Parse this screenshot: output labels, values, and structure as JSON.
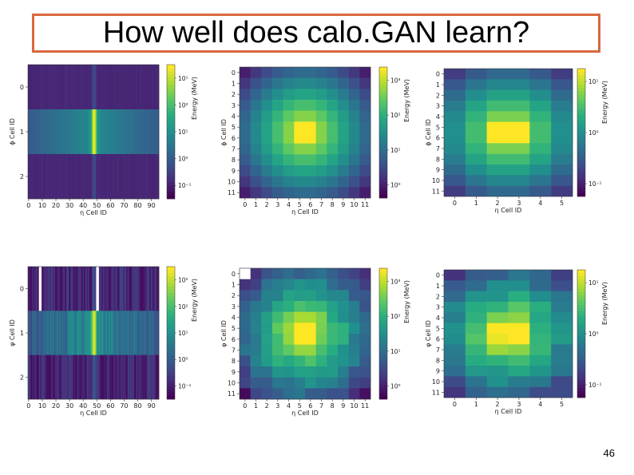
{
  "slide": {
    "title": "How well does calo.GAN learn?",
    "page_number": "46"
  },
  "colors": {
    "title_border": "#d9683f",
    "viridis": [
      "#440154",
      "#472c7a",
      "#3b518b",
      "#2c718e",
      "#21908d",
      "#27ad81",
      "#5cc863",
      "#aadc32",
      "#fde725"
    ]
  },
  "chart_data": [
    {
      "type": "heatmap",
      "id": "top-layer0",
      "title": "",
      "xlabel": "η Cell ID",
      "ylabel": "ϕ Cell ID",
      "xticks": [
        "0",
        "10",
        "20",
        "30",
        "40",
        "50",
        "60",
        "70",
        "80",
        "90"
      ],
      "yticks": [
        "0",
        "1",
        "2"
      ],
      "n_cols": 96,
      "n_rows": 3,
      "peak_col": 48,
      "peak_row": 1,
      "colorbar_label": "Energy (MeV)",
      "colorbar_ticks": [
        "10¹",
        "10²",
        "10¹",
        "10⁰",
        "10⁻¹"
      ]
    },
    {
      "type": "heatmap",
      "id": "top-layer1",
      "title": "",
      "xlabel": "η Cell ID",
      "ylabel": "ϕ Cell ID",
      "xticks": [
        "0",
        "1",
        "2",
        "3",
        "4",
        "5",
        "6",
        "7",
        "8",
        "9",
        "10",
        "11"
      ],
      "yticks": [
        "0",
        "1",
        "2",
        "3",
        "4",
        "5",
        "6",
        "7",
        "8",
        "9",
        "10",
        "11"
      ],
      "n_cols": 12,
      "n_rows": 12,
      "peak_col": 5.5,
      "peak_row": 5.5,
      "colorbar_label": "Energy (MeV)",
      "colorbar_ticks": [
        "10³",
        "10²",
        "10¹",
        "10⁰"
      ]
    },
    {
      "type": "heatmap",
      "id": "top-layer2",
      "title": "",
      "xlabel": "η Cell ID",
      "ylabel": "ϕ Cell ID",
      "xticks": [
        "0",
        "1",
        "2",
        "3",
        "4",
        "5"
      ],
      "yticks": [
        "0",
        "1",
        "2",
        "3",
        "4",
        "5",
        "6",
        "7",
        "8",
        "9",
        "10",
        "11"
      ],
      "n_cols": 6,
      "n_rows": 12,
      "peak_col": 2.5,
      "peak_row": 5.5,
      "colorbar_label": "Energy (MeV)",
      "colorbar_ticks": [
        "10¹",
        "10⁰",
        "10⁻¹"
      ]
    },
    {
      "type": "heatmap",
      "id": "bottom-layer0",
      "title": "",
      "xlabel": "η Cell ID",
      "ylabel": "φ Cell ID",
      "xticks": [
        "0",
        "10",
        "20",
        "30",
        "40",
        "50",
        "60",
        "70",
        "80",
        "90"
      ],
      "yticks": [
        "0",
        "1",
        "2"
      ],
      "n_cols": 96,
      "n_rows": 3,
      "peak_col": 48,
      "peak_row": 1,
      "colorbar_label": "Energy (MeV)",
      "colorbar_ticks": [
        "10²",
        "10²",
        "10¹",
        "10⁰",
        "10⁻¹"
      ]
    },
    {
      "type": "heatmap",
      "id": "bottom-layer1",
      "title": "",
      "xlabel": "η Cell ID",
      "ylabel": "φ Cell ID",
      "xticks": [
        "0",
        "1",
        "2",
        "3",
        "4",
        "5",
        "6",
        "7",
        "8",
        "9",
        "10",
        "11"
      ],
      "yticks": [
        "0",
        "1",
        "2",
        "3",
        "4",
        "5",
        "6",
        "7",
        "8",
        "9",
        "10",
        "11"
      ],
      "n_cols": 12,
      "n_rows": 12,
      "peak_col": 5.5,
      "peak_row": 5.5,
      "colorbar_label": "Energy (MeV)",
      "colorbar_ticks": [
        "10³",
        "10²",
        "10¹",
        "10⁰"
      ]
    },
    {
      "type": "heatmap",
      "id": "bottom-layer2",
      "title": "",
      "xlabel": "η Cell ID",
      "ylabel": "φ Cell ID",
      "xticks": [
        "0",
        "1",
        "2",
        "3",
        "4",
        "5"
      ],
      "yticks": [
        "0",
        "1",
        "2",
        "3",
        "4",
        "5",
        "6",
        "7",
        "8",
        "9",
        "10",
        "11"
      ],
      "n_cols": 6,
      "n_rows": 12,
      "peak_col": 2.5,
      "peak_row": 5.5,
      "colorbar_label": "Energy (MeV)",
      "colorbar_ticks": [
        "10¹",
        "10⁰",
        "10⁻¹"
      ]
    }
  ]
}
